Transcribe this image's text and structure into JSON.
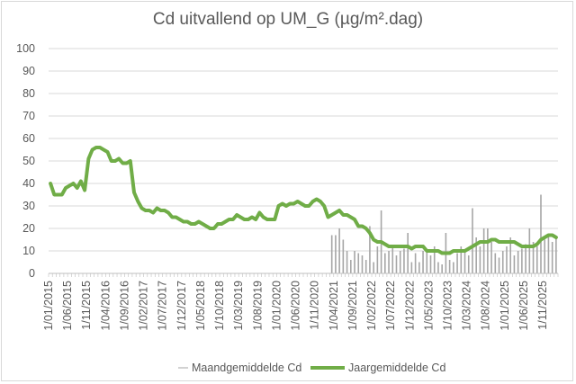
{
  "chart_data": {
    "type": "bar+line",
    "title": "Cd uitvallend op UM_G (µg/m².dag)",
    "xlabel": "",
    "ylabel": "",
    "ylim": [
      0,
      100
    ],
    "yticks": [
      0,
      10,
      20,
      30,
      40,
      50,
      60,
      70,
      80,
      90,
      100
    ],
    "x_tick_labels": [
      "1/01/2015",
      "1/06/2015",
      "1/11/2015",
      "1/04/2016",
      "1/09/2016",
      "1/02/2017",
      "1/07/2017",
      "1/12/2017",
      "1/05/2018",
      "1/10/2018",
      "1/03/2019",
      "1/08/2019",
      "1/01/2020",
      "1/06/2020",
      "1/11/2020",
      "1/04/2021",
      "1/09/2021",
      "1/02/2022",
      "1/07/2022",
      "1/12/2022",
      "1/05/2023",
      "1/10/2023",
      "1/03/2024",
      "1/08/2024",
      "1/01/2025",
      "1/06/2025",
      "1/11/2025"
    ],
    "grid": true,
    "legend_position": "bottom",
    "colors": {
      "bars": "#a6a6a6",
      "line": "#70ad47"
    },
    "series": [
      {
        "name": "Maandgemiddelde Cd",
        "type": "bar",
        "points": [
          [
            "2021-03",
            17
          ],
          [
            "2021-04",
            17
          ],
          [
            "2021-05",
            20
          ],
          [
            "2021-06",
            15
          ],
          [
            "2021-07",
            10
          ],
          [
            "2021-08",
            6
          ],
          [
            "2021-09",
            10
          ],
          [
            "2021-10",
            9
          ],
          [
            "2021-11",
            8
          ],
          [
            "2021-12",
            6
          ],
          [
            "2022-01",
            21
          ],
          [
            "2022-02",
            5
          ],
          [
            "2022-03",
            12
          ],
          [
            "2022-04",
            28
          ],
          [
            "2022-05",
            9
          ],
          [
            "2022-06",
            10
          ],
          [
            "2022-07",
            12
          ],
          [
            "2022-08",
            8
          ],
          [
            "2022-09",
            10
          ],
          [
            "2022-10",
            11
          ],
          [
            "2022-11",
            18
          ],
          [
            "2022-12",
            5
          ],
          [
            "2023-01",
            9
          ],
          [
            "2023-02",
            5
          ],
          [
            "2023-03",
            10
          ],
          [
            "2023-04",
            10
          ],
          [
            "2023-05",
            8
          ],
          [
            "2023-06",
            12
          ],
          [
            "2023-07",
            5
          ],
          [
            "2023-08",
            4
          ],
          [
            "2023-09",
            18
          ],
          [
            "2023-10",
            6
          ],
          [
            "2023-11",
            5
          ],
          [
            "2023-12",
            9
          ],
          [
            "2024-01",
            12
          ],
          [
            "2024-02",
            10
          ],
          [
            "2024-03",
            8
          ],
          [
            "2024-04",
            29
          ],
          [
            "2024-05",
            16
          ],
          [
            "2024-06",
            12
          ],
          [
            "2024-07",
            20
          ],
          [
            "2024-08",
            20
          ],
          [
            "2024-09",
            14
          ],
          [
            "2024-10",
            9
          ],
          [
            "2024-11",
            7
          ],
          [
            "2024-12",
            10
          ],
          [
            "2025-01",
            12
          ],
          [
            "2025-02",
            16
          ],
          [
            "2025-03",
            8
          ],
          [
            "2025-04",
            10
          ],
          [
            "2025-05",
            11
          ],
          [
            "2025-06",
            13
          ],
          [
            "2025-07",
            20
          ],
          [
            "2025-08",
            14
          ],
          [
            "2025-09",
            12
          ],
          [
            "2025-10",
            35
          ],
          [
            "2025-11",
            15
          ],
          [
            "2025-12",
            17
          ],
          [
            "2026-01",
            14
          ],
          [
            "2026-02",
            16
          ]
        ]
      },
      {
        "name": "Jaargemiddelde Cd",
        "type": "line",
        "points": [
          [
            "2015-01",
            40
          ],
          [
            "2015-02",
            35
          ],
          [
            "2015-03",
            35
          ],
          [
            "2015-04",
            35
          ],
          [
            "2015-05",
            38
          ],
          [
            "2015-06",
            39
          ],
          [
            "2015-07",
            40
          ],
          [
            "2015-08",
            38
          ],
          [
            "2015-09",
            41
          ],
          [
            "2015-10",
            37
          ],
          [
            "2015-11",
            51
          ],
          [
            "2015-12",
            55
          ],
          [
            "2016-01",
            56
          ],
          [
            "2016-02",
            56
          ],
          [
            "2016-03",
            55
          ],
          [
            "2016-04",
            54
          ],
          [
            "2016-05",
            50
          ],
          [
            "2016-06",
            50
          ],
          [
            "2016-07",
            51
          ],
          [
            "2016-08",
            49
          ],
          [
            "2016-09",
            49
          ],
          [
            "2016-10",
            50
          ],
          [
            "2016-11",
            36
          ],
          [
            "2016-12",
            32
          ],
          [
            "2017-01",
            29
          ],
          [
            "2017-02",
            28
          ],
          [
            "2017-03",
            28
          ],
          [
            "2017-04",
            27
          ],
          [
            "2017-05",
            29
          ],
          [
            "2017-06",
            28
          ],
          [
            "2017-07",
            28
          ],
          [
            "2017-08",
            27
          ],
          [
            "2017-09",
            25
          ],
          [
            "2017-10",
            25
          ],
          [
            "2017-11",
            24
          ],
          [
            "2017-12",
            23
          ],
          [
            "2018-01",
            23
          ],
          [
            "2018-02",
            22
          ],
          [
            "2018-03",
            22
          ],
          [
            "2018-04",
            23
          ],
          [
            "2018-05",
            22
          ],
          [
            "2018-06",
            21
          ],
          [
            "2018-07",
            20
          ],
          [
            "2018-08",
            20
          ],
          [
            "2018-09",
            22
          ],
          [
            "2018-10",
            22
          ],
          [
            "2018-11",
            23
          ],
          [
            "2018-12",
            24
          ],
          [
            "2019-01",
            24
          ],
          [
            "2019-02",
            26
          ],
          [
            "2019-03",
            25
          ],
          [
            "2019-04",
            24
          ],
          [
            "2019-05",
            24
          ],
          [
            "2019-06",
            25
          ],
          [
            "2019-07",
            24
          ],
          [
            "2019-08",
            27
          ],
          [
            "2019-09",
            25
          ],
          [
            "2019-10",
            24
          ],
          [
            "2019-11",
            24
          ],
          [
            "2019-12",
            24
          ],
          [
            "2020-01",
            30
          ],
          [
            "2020-02",
            31
          ],
          [
            "2020-03",
            30
          ],
          [
            "2020-04",
            31
          ],
          [
            "2020-05",
            31
          ],
          [
            "2020-06",
            32
          ],
          [
            "2020-07",
            31
          ],
          [
            "2020-08",
            30
          ],
          [
            "2020-09",
            30
          ],
          [
            "2020-10",
            32
          ],
          [
            "2020-11",
            33
          ],
          [
            "2020-12",
            32
          ],
          [
            "2021-01",
            30
          ],
          [
            "2021-02",
            25
          ],
          [
            "2021-03",
            26
          ],
          [
            "2021-04",
            27
          ],
          [
            "2021-05",
            28
          ],
          [
            "2021-06",
            26
          ],
          [
            "2021-07",
            26
          ],
          [
            "2021-08",
            25
          ],
          [
            "2021-09",
            24
          ],
          [
            "2021-10",
            21
          ],
          [
            "2021-11",
            21
          ],
          [
            "2021-12",
            20
          ],
          [
            "2022-01",
            18
          ],
          [
            "2022-02",
            15
          ],
          [
            "2022-03",
            14
          ],
          [
            "2022-04",
            14
          ],
          [
            "2022-05",
            13
          ],
          [
            "2022-06",
            12
          ],
          [
            "2022-07",
            12
          ],
          [
            "2022-08",
            12
          ],
          [
            "2022-09",
            12
          ],
          [
            "2022-10",
            12
          ],
          [
            "2022-11",
            12
          ],
          [
            "2022-12",
            11
          ],
          [
            "2023-01",
            12
          ],
          [
            "2023-02",
            12
          ],
          [
            "2023-03",
            12
          ],
          [
            "2023-04",
            10
          ],
          [
            "2023-05",
            10
          ],
          [
            "2023-06",
            10
          ],
          [
            "2023-07",
            10
          ],
          [
            "2023-08",
            9
          ],
          [
            "2023-09",
            9
          ],
          [
            "2023-10",
            9
          ],
          [
            "2023-11",
            10
          ],
          [
            "2023-12",
            10
          ],
          [
            "2024-01",
            10
          ],
          [
            "2024-02",
            10
          ],
          [
            "2024-03",
            11
          ],
          [
            "2024-04",
            12
          ],
          [
            "2024-05",
            13
          ],
          [
            "2024-06",
            14
          ],
          [
            "2024-07",
            14
          ],
          [
            "2024-08",
            14
          ],
          [
            "2024-09",
            15
          ],
          [
            "2024-10",
            15
          ],
          [
            "2024-11",
            14
          ],
          [
            "2024-12",
            14
          ],
          [
            "2025-01",
            14
          ],
          [
            "2025-02",
            14
          ],
          [
            "2025-03",
            14
          ],
          [
            "2025-04",
            13
          ],
          [
            "2025-05",
            12
          ],
          [
            "2025-06",
            12
          ],
          [
            "2025-07",
            12
          ],
          [
            "2025-08",
            12
          ],
          [
            "2025-09",
            13
          ],
          [
            "2025-10",
            15
          ],
          [
            "2025-11",
            16
          ],
          [
            "2025-12",
            17
          ],
          [
            "2026-01",
            17
          ],
          [
            "2026-02",
            16
          ]
        ]
      }
    ]
  }
}
